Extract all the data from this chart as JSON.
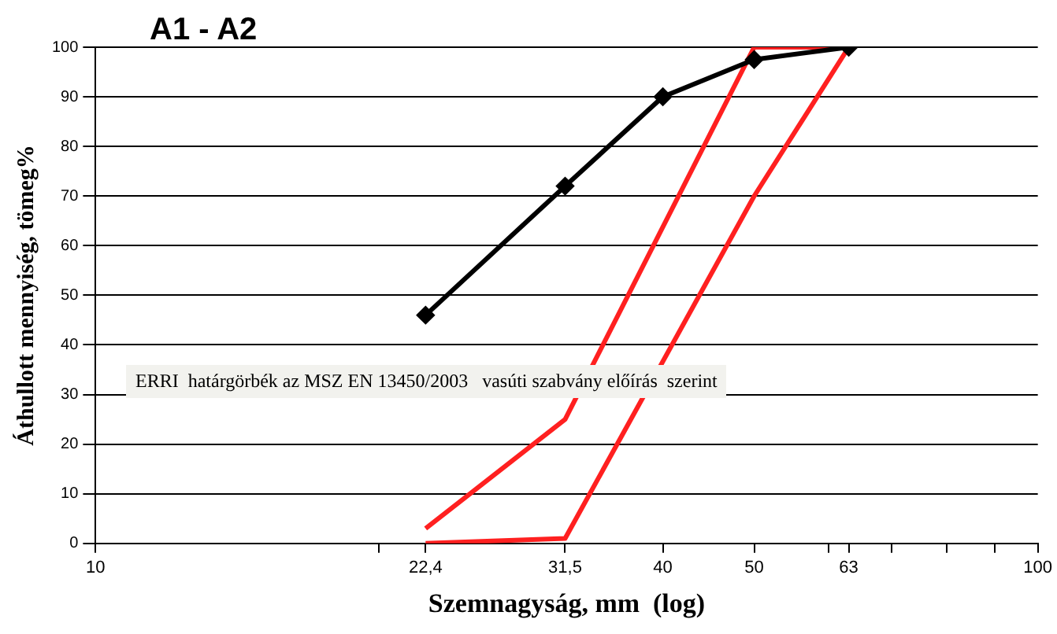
{
  "chart_data": {
    "type": "line",
    "title": "A1 - A2",
    "xlabel": "Szemnagyság, mm  (log)",
    "ylabel": "Áthullott mennyiség, tömeg%",
    "log": "x",
    "xlim": [
      10,
      100
    ],
    "xticks": [
      10,
      {
        "value": 20,
        "label": null
      },
      {
        "value": 22.4,
        "label": "22,4"
      },
      {
        "value": 31.5,
        "label": "31,5"
      },
      40,
      50,
      {
        "value": 60,
        "label": null
      },
      63,
      {
        "value": 70,
        "label": null
      },
      {
        "value": 80,
        "label": null
      },
      {
        "value": 90,
        "label": null
      },
      100
    ],
    "ylim": [
      0,
      100
    ],
    "yticks": [
      0,
      10,
      20,
      30,
      40,
      50,
      60,
      70,
      80,
      90,
      100
    ],
    "grid": "y",
    "legend": false,
    "annotations": [
      "ERRI  határgörbék az MSZ EN 13450/2003   vasúti szabvány előírás  szerint"
    ],
    "series": [
      {
        "color": "#000000",
        "marker": "diamond",
        "x": [
          22.4,
          31.5,
          40,
          50,
          63
        ],
        "values": [
          46,
          72,
          90,
          97.5,
          100
        ]
      },
      {
        "color": "#ff2020",
        "marker": "none",
        "x": [
          22.4,
          31.5,
          50,
          63
        ],
        "values": [
          3,
          25,
          100,
          100
        ]
      },
      {
        "color": "#ff2020",
        "marker": "none",
        "x": [
          22.4,
          31.5,
          50,
          63
        ],
        "values": [
          0,
          1,
          70,
          100
        ]
      }
    ]
  }
}
